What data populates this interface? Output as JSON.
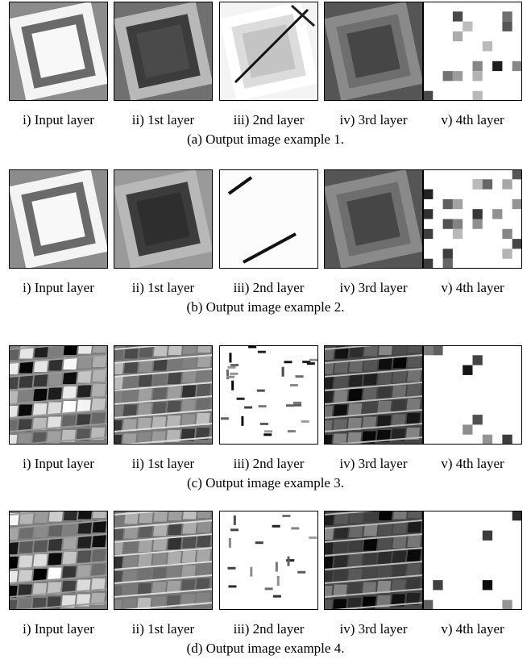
{
  "figures": [
    {
      "panels": [
        "i) Input layer",
        "ii) 1st layer",
        "iii) 2nd layer",
        "iv) 3rd layer",
        "v) 4th layer"
      ],
      "caption": "(a) Output image example 1."
    },
    {
      "panels": [
        "i) Input layer",
        "ii) 1st layer",
        "iii) 2nd layer",
        "iv) 3rd layer",
        "v) 4th layer"
      ],
      "caption": "(b) Output image example 2."
    },
    {
      "panels": [
        "i) Input layer",
        "ii) 1st layer",
        "iii) 2nd layer",
        "iv) 3rd layer",
        "v) 4th layer"
      ],
      "caption": "(c) Output image example 3."
    },
    {
      "panels": [
        "i) Input layer",
        "ii) 1st layer",
        "iii) 2nd layer",
        "iv) 3rd layer",
        "v) 4th layer"
      ],
      "caption": "(d) Output image example 4."
    }
  ]
}
